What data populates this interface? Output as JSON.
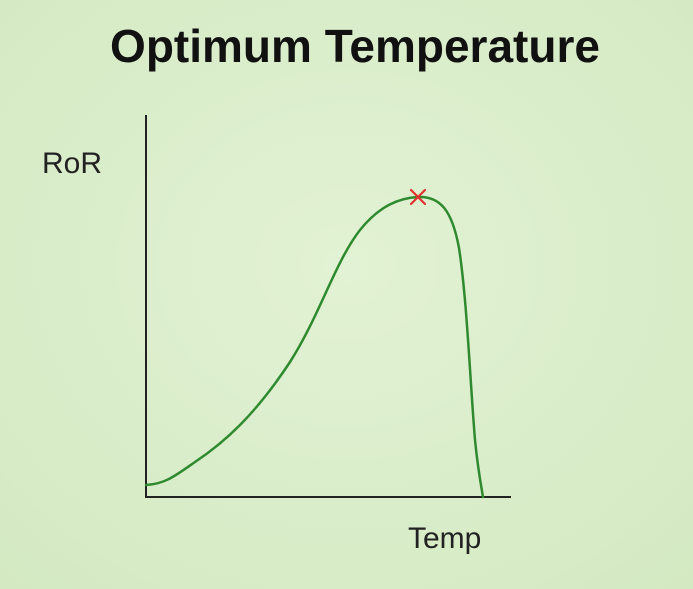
{
  "header": {
    "title": "Optimum Temperature"
  },
  "axes": {
    "y_label": "RoR",
    "x_label": "Temp"
  }
}
